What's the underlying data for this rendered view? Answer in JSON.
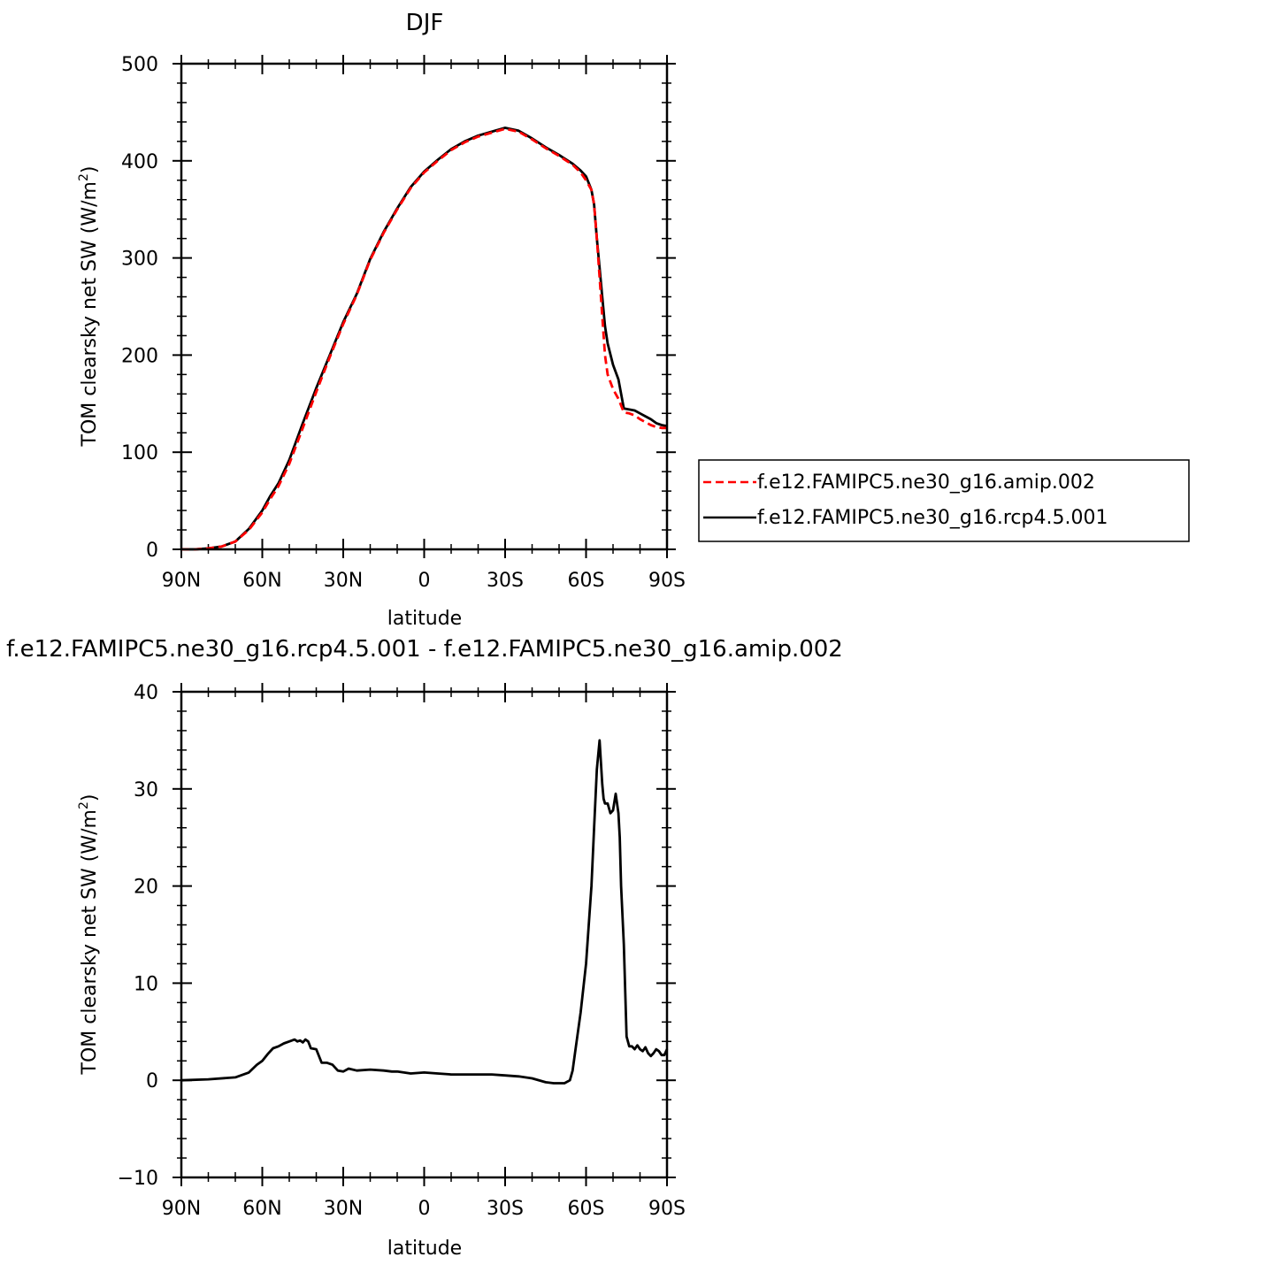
{
  "chart_data": [
    {
      "type": "line",
      "title": "DJF",
      "xlabel": "latitude",
      "ylabel_main": "TOM clearsky net SW (W/m",
      "ylabel_sup": "2",
      "ylabel_close": ")",
      "xlim": [
        90,
        -90
      ],
      "ylim": [
        0,
        500
      ],
      "xticks": [
        90,
        60,
        30,
        0,
        -30,
        -60,
        -90
      ],
      "xtick_labels": [
        "90N",
        "60N",
        "30N",
        "0",
        "30S",
        "60S",
        "90S"
      ],
      "yticks": [
        0,
        100,
        200,
        300,
        400,
        500
      ],
      "ytick_labels": [
        "0",
        "100",
        "200",
        "300",
        "400",
        "500"
      ],
      "legend": "right",
      "series": [
        {
          "name": "f.e12.FAMIPC5.ne30_g16.amip.002",
          "color": "#ff0000",
          "style": "dashed",
          "x": [
            90,
            85,
            80,
            75,
            70,
            65,
            60,
            57,
            54,
            50,
            45,
            40,
            35,
            30,
            25,
            20,
            15,
            10,
            5,
            0,
            -5,
            -10,
            -15,
            -20,
            -25,
            -30,
            -35,
            -40,
            -45,
            -50,
            -55,
            -58,
            -60,
            -62,
            -63,
            -64,
            -65,
            -66,
            -67,
            -68,
            -70,
            -72,
            -74,
            -76,
            -78,
            -80,
            -82,
            -84,
            -86,
            -88,
            -90
          ],
          "y": [
            0,
            0,
            1,
            3,
            8,
            20,
            38,
            52,
            65,
            88,
            125,
            162,
            198,
            232,
            262,
            298,
            326,
            350,
            372,
            388,
            400,
            411,
            419,
            425,
            429,
            433,
            430,
            422,
            413,
            405,
            396,
            388,
            380,
            370,
            355,
            320,
            280,
            240,
            200,
            180,
            165,
            155,
            141,
            140,
            138,
            134,
            131,
            128,
            126,
            125,
            125
          ]
        },
        {
          "name": "f.e12.FAMIPC5.ne30_g16.rcp4.5.001",
          "color": "#000000",
          "style": "solid",
          "x": [
            90,
            85,
            80,
            75,
            70,
            65,
            60,
            57,
            54,
            50,
            45,
            40,
            35,
            30,
            25,
            20,
            15,
            10,
            5,
            0,
            -5,
            -10,
            -15,
            -20,
            -25,
            -30,
            -35,
            -40,
            -45,
            -50,
            -55,
            -58,
            -60,
            -62,
            -63,
            -64,
            -65,
            -66,
            -67,
            -68,
            -70,
            -72,
            -74,
            -76,
            -78,
            -80,
            -82,
            -84,
            -86,
            -88,
            -90
          ],
          "y": [
            0,
            0,
            1,
            3,
            8,
            21,
            40,
            55,
            68,
            92,
            130,
            166,
            200,
            234,
            263,
            299,
            327,
            351,
            373,
            389,
            401,
            412,
            420,
            426,
            430,
            434,
            431,
            423,
            414,
            406,
            397,
            390,
            384,
            370,
            355,
            320,
            290,
            260,
            230,
            212,
            190,
            175,
            145,
            144,
            143,
            140,
            137,
            134,
            130,
            128,
            127
          ]
        }
      ]
    },
    {
      "type": "line",
      "title": "f.e12.FAMIPC5.ne30_g16.rcp4.5.001 - f.e12.FAMIPC5.ne30_g16.amip.002",
      "xlabel": "latitude",
      "ylabel_main": "TOM clearsky net SW (W/m",
      "ylabel_sup": "2",
      "ylabel_close": ")",
      "xlim": [
        90,
        -90
      ],
      "ylim": [
        -10,
        40
      ],
      "xticks": [
        90,
        60,
        30,
        0,
        -30,
        -60,
        -90
      ],
      "xtick_labels": [
        "90N",
        "60N",
        "30N",
        "0",
        "30S",
        "60S",
        "90S"
      ],
      "yticks": [
        -10,
        0,
        10,
        20,
        30,
        40
      ],
      "ytick_labels": [
        "−10",
        "0",
        "10",
        "20",
        "30",
        "40"
      ],
      "series": [
        {
          "color": "#000000",
          "style": "solid",
          "x": [
            90,
            80,
            70,
            65,
            62,
            60,
            58,
            56,
            54,
            52,
            50,
            48,
            47,
            46,
            45,
            44,
            43,
            42,
            40,
            38,
            36,
            34,
            32,
            30,
            28,
            25,
            20,
            15,
            12,
            10,
            5,
            0,
            -5,
            -10,
            -15,
            -20,
            -25,
            -30,
            -35,
            -40,
            -45,
            -48,
            -50,
            -52,
            -54,
            -55,
            -56,
            -58,
            -60,
            -62,
            -63,
            -64,
            -65,
            -66,
            -66.5,
            -67,
            -68,
            -69,
            -70,
            -71,
            -72,
            -72.5,
            -73,
            -74,
            -75,
            -76,
            -77,
            -78,
            -79,
            -80,
            -81,
            -82,
            -83,
            -84,
            -85,
            -86,
            -87,
            -88,
            -89,
            -90
          ],
          "y": [
            0,
            0.1,
            0.3,
            0.8,
            1.6,
            2.0,
            2.7,
            3.3,
            3.5,
            3.8,
            4.0,
            4.2,
            4.0,
            4.1,
            3.9,
            4.2,
            4.0,
            3.3,
            3.2,
            1.8,
            1.8,
            1.6,
            1.0,
            0.9,
            1.2,
            1.0,
            1.1,
            1.0,
            0.9,
            0.9,
            0.7,
            0.8,
            0.7,
            0.6,
            0.6,
            0.6,
            0.6,
            0.5,
            0.4,
            0.2,
            -0.2,
            -0.3,
            -0.3,
            -0.3,
            0,
            1.0,
            3.0,
            7.0,
            12.0,
            20.0,
            26.0,
            32.0,
            35.0,
            30.5,
            29.0,
            28.5,
            28.5,
            27.5,
            27.8,
            29.5,
            27.5,
            25.0,
            20.0,
            14.0,
            4.5,
            3.5,
            3.5,
            3.2,
            3.6,
            3.2,
            3.0,
            3.4,
            2.8,
            2.5,
            2.8,
            3.2,
            3.0,
            2.6,
            2.6,
            3.2
          ]
        }
      ]
    }
  ]
}
